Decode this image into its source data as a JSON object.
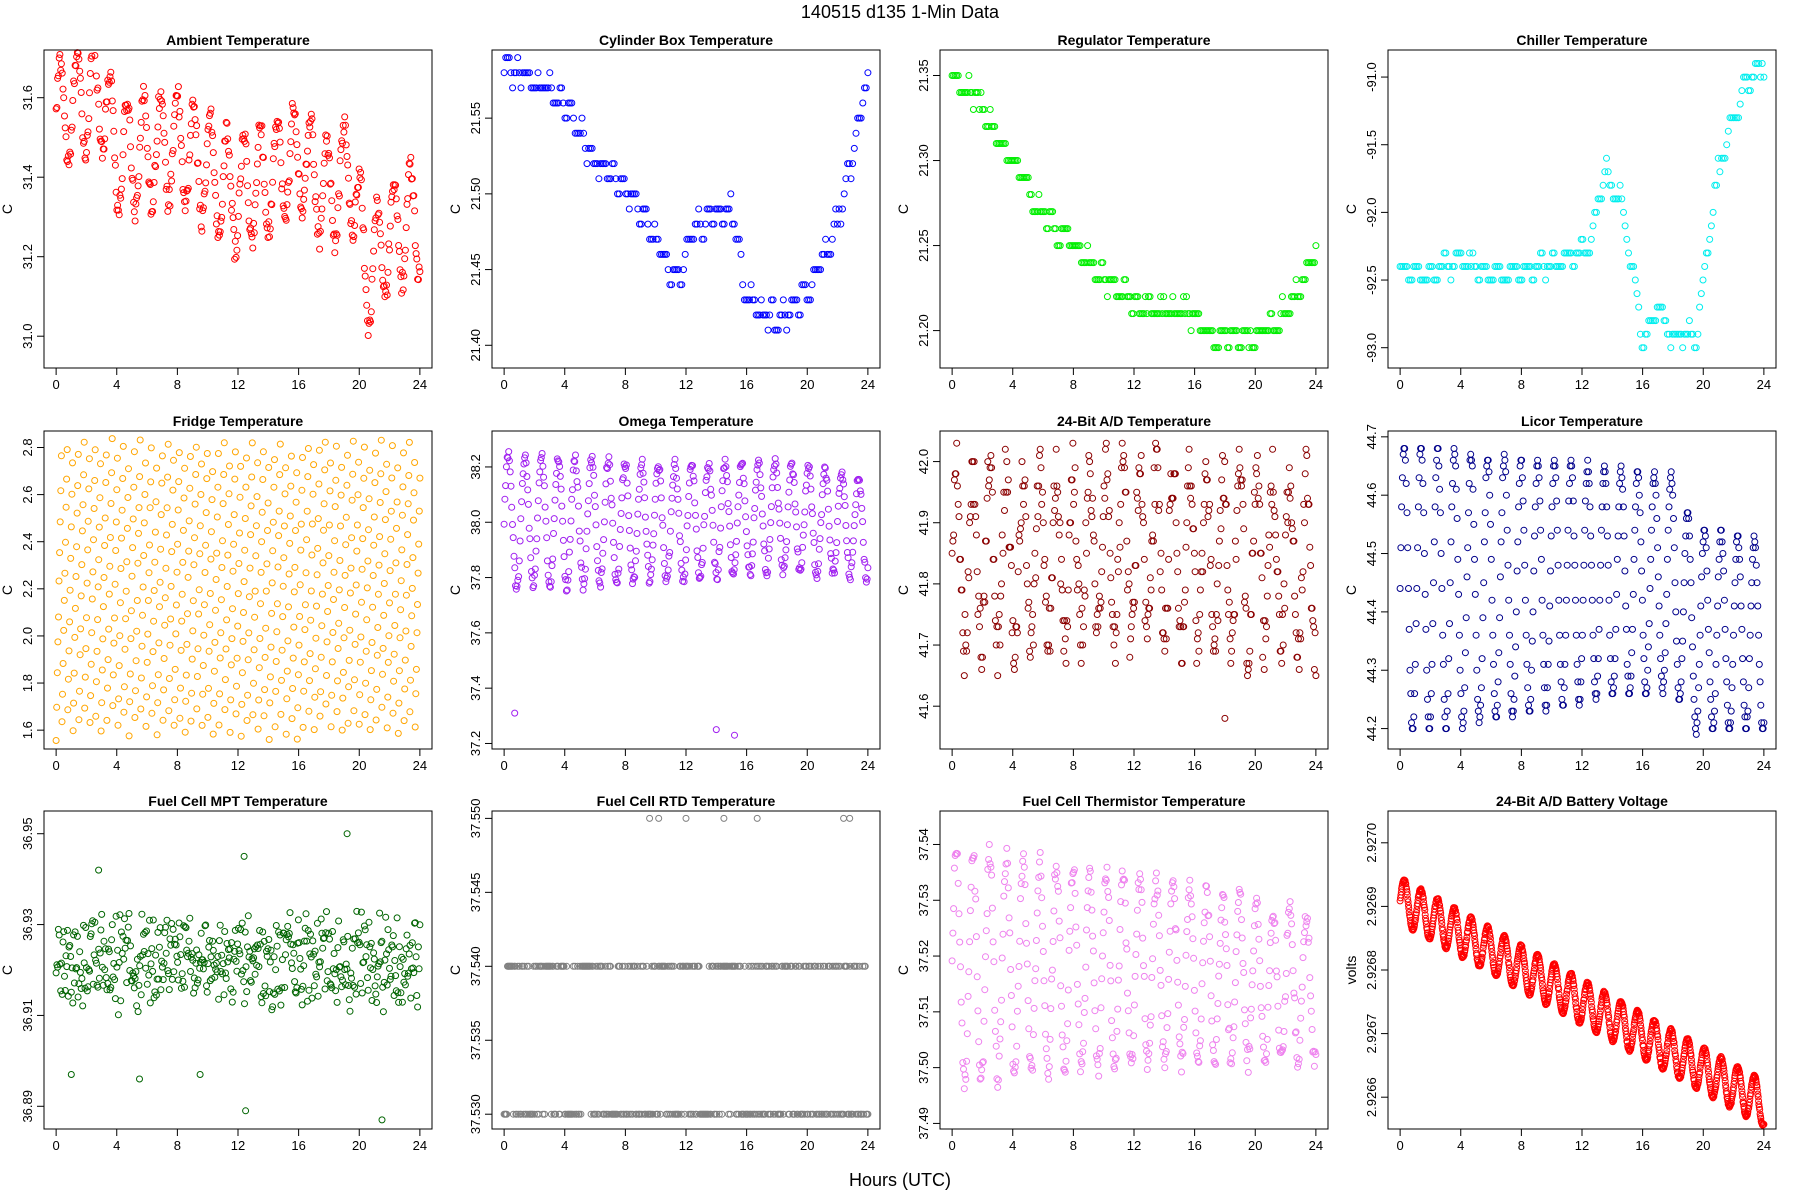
{
  "figure": {
    "title": "140515   d135   1-Min Data",
    "xlabel": "Hours (UTC)"
  },
  "chart_data": [
    {
      "type": "scatter",
      "title": "Ambient Temperature",
      "ylabel": "C",
      "color": "#ff0000",
      "xlim": [
        -0.8,
        24.8
      ],
      "ylim": [
        30.92,
        31.72
      ],
      "xticks": [
        0,
        4,
        8,
        12,
        16,
        20,
        24
      ],
      "yticks": [
        31.0,
        31.2,
        31.4,
        31.6
      ],
      "ytick_labels": [
        "31.0",
        "31.2",
        "31.4",
        "31.6"
      ],
      "pattern": "ambient",
      "base": [
        [
          0,
          31.55
        ],
        [
          3,
          31.62
        ],
        [
          4,
          31.45
        ],
        [
          8,
          31.48
        ],
        [
          12,
          31.35
        ],
        [
          16,
          31.45
        ],
        [
          18,
          31.35
        ],
        [
          19.5,
          31.42
        ],
        [
          20.5,
          31.15
        ],
        [
          22,
          31.25
        ],
        [
          24,
          31.3
        ]
      ],
      "amp": 0.14,
      "period": 1.1,
      "noise": 0.03,
      "density": 1
    },
    {
      "type": "scatter",
      "title": "Cylinder Box Temperature",
      "ylabel": "C",
      "color": "#0000ff",
      "xlim": [
        -0.8,
        24.8
      ],
      "ylim": [
        21.385,
        21.595
      ],
      "xticks": [
        0,
        4,
        8,
        12,
        16,
        20,
        24
      ],
      "yticks": [
        21.4,
        21.45,
        21.5,
        21.55
      ],
      "ytick_labels": [
        "21.40",
        "21.45",
        "21.50",
        "21.55"
      ],
      "pattern": "quantized",
      "q": 0.01,
      "base": [
        [
          0,
          21.585
        ],
        [
          2,
          21.575
        ],
        [
          4,
          21.56
        ],
        [
          6,
          21.52
        ],
        [
          8,
          21.505
        ],
        [
          10,
          21.47
        ],
        [
          11.5,
          21.44
        ],
        [
          12.5,
          21.48
        ],
        [
          15,
          21.49
        ],
        [
          16,
          21.43
        ],
        [
          18,
          21.415
        ],
        [
          20,
          21.435
        ],
        [
          22,
          21.48
        ],
        [
          24,
          21.575
        ]
      ],
      "amp": 0.006,
      "period": 0.7,
      "noise": 0.004,
      "density": 0.45
    },
    {
      "type": "scatter",
      "title": "Regulator Temperature",
      "ylabel": "C",
      "color": "#00ee00",
      "xlim": [
        -0.8,
        24.8
      ],
      "ylim": [
        21.178,
        21.365
      ],
      "xticks": [
        0,
        4,
        8,
        12,
        16,
        20,
        24
      ],
      "yticks": [
        21.2,
        21.25,
        21.3,
        21.35
      ],
      "ytick_labels": [
        "21.20",
        "21.25",
        "21.30",
        "21.35"
      ],
      "pattern": "quantized",
      "q": 0.01,
      "base": [
        [
          0,
          21.352
        ],
        [
          2,
          21.33
        ],
        [
          4,
          21.3
        ],
        [
          6,
          21.27
        ],
        [
          8,
          21.25
        ],
        [
          10,
          21.23
        ],
        [
          12,
          21.215
        ],
        [
          16,
          21.21
        ],
        [
          17,
          21.195
        ],
        [
          20,
          21.195
        ],
        [
          22,
          21.21
        ],
        [
          24,
          21.245
        ]
      ],
      "amp": 0.004,
      "period": 0.8,
      "noise": 0.003,
      "density": 0.5
    },
    {
      "type": "scatter",
      "title": "Chiller Temperature",
      "ylabel": "C",
      "color": "#00eeee",
      "xlim": [
        -0.8,
        24.8
      ],
      "ylim": [
        -93.15,
        -90.8
      ],
      "xticks": [
        0,
        4,
        8,
        12,
        16,
        20,
        24
      ],
      "yticks": [
        -93.0,
        -92.5,
        -92.0,
        -91.5,
        -91.0
      ],
      "ytick_labels": [
        "-93.0",
        "-92.5",
        "-92.0",
        "-91.5",
        "-91.0"
      ],
      "pattern": "quantized",
      "q": 0.1,
      "base": [
        [
          0,
          -92.45
        ],
        [
          2,
          -92.45
        ],
        [
          4,
          -92.35
        ],
        [
          6,
          -92.45
        ],
        [
          8,
          -92.45
        ],
        [
          11,
          -92.35
        ],
        [
          12.5,
          -92.25
        ],
        [
          13.5,
          -91.7
        ],
        [
          14.5,
          -91.9
        ],
        [
          15.5,
          -92.5
        ],
        [
          16,
          -93.0
        ],
        [
          17,
          -92.7
        ],
        [
          18,
          -92.95
        ],
        [
          19.5,
          -92.9
        ],
        [
          20,
          -92.5
        ],
        [
          21,
          -91.7
        ],
        [
          22,
          -91.3
        ],
        [
          23,
          -91.0
        ],
        [
          24,
          -90.95
        ]
      ],
      "amp": 0.06,
      "period": 0.9,
      "noise": 0.04,
      "density": 0.45
    },
    {
      "type": "scatter",
      "title": "Fridge Temperature",
      "ylabel": "C",
      "color": "#ffa500",
      "xlim": [
        -0.8,
        24.8
      ],
      "ylim": [
        1.52,
        2.87
      ],
      "xticks": [
        0,
        4,
        8,
        12,
        16,
        20,
        24
      ],
      "yticks": [
        1.6,
        1.8,
        2.0,
        2.2,
        2.4,
        2.6,
        2.8
      ],
      "ytick_labels": [
        "1.6",
        "1.8",
        "2.0",
        "2.2",
        "2.4",
        "2.6",
        "2.8"
      ],
      "pattern": "sawtooth",
      "lo": 1.57,
      "hi": 2.83,
      "period": 0.37,
      "density": 1.3
    },
    {
      "type": "scatter",
      "title": "Omega Temperature",
      "ylabel": "C",
      "color": "#a020f0",
      "xlim": [
        -0.8,
        24.8
      ],
      "ylim": [
        37.18,
        38.33
      ],
      "xticks": [
        0,
        4,
        8,
        12,
        16,
        20,
        24
      ],
      "yticks": [
        37.2,
        37.4,
        37.6,
        37.8,
        38.0,
        38.2
      ],
      "ytick_labels": [
        "37.2",
        "37.4",
        "37.6",
        "37.8",
        "38.0",
        "38.2"
      ],
      "pattern": "oscillate",
      "base": [
        [
          0,
          38.0
        ],
        [
          6,
          38.0
        ],
        [
          12,
          38.0
        ],
        [
          18,
          38.02
        ],
        [
          24,
          37.98
        ]
      ],
      "amp": 0.24,
      "ampEnd": 0.18,
      "period": 1.1,
      "noise": 0.02,
      "density": 1,
      "outliers": [
        [
          0.7,
          37.31
        ],
        [
          14,
          37.25
        ],
        [
          15.2,
          37.23
        ]
      ]
    },
    {
      "type": "scatter",
      "title": "24-Bit A/D Temperature",
      "ylabel": "C",
      "color": "#8b0000",
      "xlim": [
        -0.8,
        24.8
      ],
      "ylim": [
        41.53,
        42.05
      ],
      "xticks": [
        0,
        4,
        8,
        12,
        16,
        20,
        24
      ],
      "yticks": [
        41.6,
        41.7,
        41.8,
        41.9,
        42.0
      ],
      "ytick_labels": [
        "41.6",
        "41.7",
        "41.8",
        "41.9",
        "42.0"
      ],
      "pattern": "quantized",
      "q": 0.01,
      "base": [
        [
          0,
          41.84
        ],
        [
          6,
          41.84
        ],
        [
          12,
          41.85
        ],
        [
          18,
          41.84
        ],
        [
          24,
          41.83
        ]
      ],
      "amp": 0.14,
      "period": 1.1,
      "noise": 0.05,
      "density": 1,
      "outliers": [
        [
          18,
          41.58
        ]
      ]
    },
    {
      "type": "scatter",
      "title": "Licor Temperature",
      "ylabel": "C",
      "color": "#00008b",
      "xlim": [
        -0.8,
        24.8
      ],
      "ylim": [
        44.165,
        44.71
      ],
      "xticks": [
        0,
        4,
        8,
        12,
        16,
        20,
        24
      ],
      "yticks": [
        44.2,
        44.3,
        44.4,
        44.5,
        44.6,
        44.7
      ],
      "ytick_labels": [
        "44.2",
        "44.3",
        "44.4",
        "44.5",
        "44.6",
        "44.7"
      ],
      "pattern": "quantized",
      "q": 0.01,
      "base": [
        [
          0,
          44.44
        ],
        [
          6,
          44.44
        ],
        [
          12,
          44.45
        ],
        [
          18,
          44.45
        ],
        [
          19.5,
          44.37
        ],
        [
          24,
          44.36
        ]
      ],
      "amp": 0.25,
      "ampEnd": 0.16,
      "period": 1.1,
      "noise": 0.004,
      "density": 1
    },
    {
      "type": "scatter",
      "title": "Fuel Cell MPT Temperature",
      "ylabel": "C",
      "color": "#006400",
      "xlim": [
        -0.8,
        24.8
      ],
      "ylim": [
        36.885,
        36.955
      ],
      "xticks": [
        0,
        4,
        8,
        12,
        16,
        20,
        24
      ],
      "yticks": [
        36.89,
        36.91,
        36.93,
        36.95
      ],
      "ytick_labels": [
        "36.89",
        "36.91",
        "36.93",
        "36.95"
      ],
      "pattern": "noise",
      "base": [
        [
          0,
          36.922
        ],
        [
          24,
          36.922
        ]
      ],
      "amp": 0.004,
      "period": 1.1,
      "noise": 0.008,
      "density": 1,
      "outliers": [
        [
          1,
          36.897
        ],
        [
          5.5,
          36.896
        ],
        [
          9.5,
          36.897
        ],
        [
          12.5,
          36.889
        ],
        [
          19.2,
          36.95
        ],
        [
          21.5,
          36.887
        ],
        [
          12.4,
          36.945
        ],
        [
          2.8,
          36.942
        ]
      ]
    },
    {
      "type": "scatter",
      "title": "Fuel Cell RTD Temperature",
      "ylabel": "C",
      "color": "#808080",
      "xlim": [
        -0.8,
        24.8
      ],
      "ylim": [
        37.529,
        37.5505
      ],
      "xticks": [
        0,
        4,
        8,
        12,
        16,
        20,
        24
      ],
      "yticks": [
        37.53,
        37.535,
        37.54,
        37.545,
        37.55
      ],
      "ytick_labels": [
        "37.530",
        "37.535",
        "37.540",
        "37.545",
        "37.550"
      ],
      "pattern": "levels",
      "levels": [
        37.53,
        37.54
      ],
      "density": 0.9,
      "outliers": [
        [
          9.6,
          37.55
        ],
        [
          10.2,
          37.55
        ],
        [
          12,
          37.55
        ],
        [
          14.5,
          37.55
        ],
        [
          16.7,
          37.55
        ],
        [
          22.4,
          37.55
        ],
        [
          22.8,
          37.55
        ]
      ]
    },
    {
      "type": "scatter",
      "title": "Fuel Cell Thermistor Temperature",
      "ylabel": "C",
      "color": "#ee82ee",
      "xlim": [
        -0.8,
        24.8
      ],
      "ylim": [
        37.489,
        37.546
      ],
      "xticks": [
        0,
        4,
        8,
        12,
        16,
        20,
        24
      ],
      "yticks": [
        37.49,
        37.5,
        37.51,
        37.52,
        37.53,
        37.54
      ],
      "ytick_labels": [
        "37.49",
        "37.50",
        "37.51",
        "37.52",
        "37.53",
        "37.54"
      ],
      "pattern": "oscillate",
      "base": [
        [
          0,
          37.518
        ],
        [
          6,
          37.518
        ],
        [
          12,
          37.517
        ],
        [
          18,
          37.516
        ],
        [
          24,
          37.514
        ]
      ],
      "amp": 0.021,
      "ampEnd": 0.013,
      "period": 1.1,
      "noise": 0.002,
      "density": 1
    },
    {
      "type": "scatter",
      "title": "24-Bit A/D Battery Voltage",
      "ylabel": "volts",
      "color": "#ff0000",
      "xlim": [
        -0.8,
        24.8
      ],
      "ylim": [
        2.92655,
        2.92705
      ],
      "xticks": [
        0,
        4,
        8,
        12,
        16,
        20,
        24
      ],
      "yticks": [
        2.9266,
        2.9267,
        2.9268,
        2.9269,
        2.927
      ],
      "ytick_labels": [
        "2.9266",
        "2.9267",
        "2.9268",
        "2.9269",
        "2.9270"
      ],
      "pattern": "battery",
      "base": [
        [
          0,
          2.92691
        ],
        [
          24,
          2.92659
        ]
      ],
      "amp": 3.5e-05,
      "period": 1.1,
      "noise": 1.5e-06,
      "density": 2
    }
  ]
}
